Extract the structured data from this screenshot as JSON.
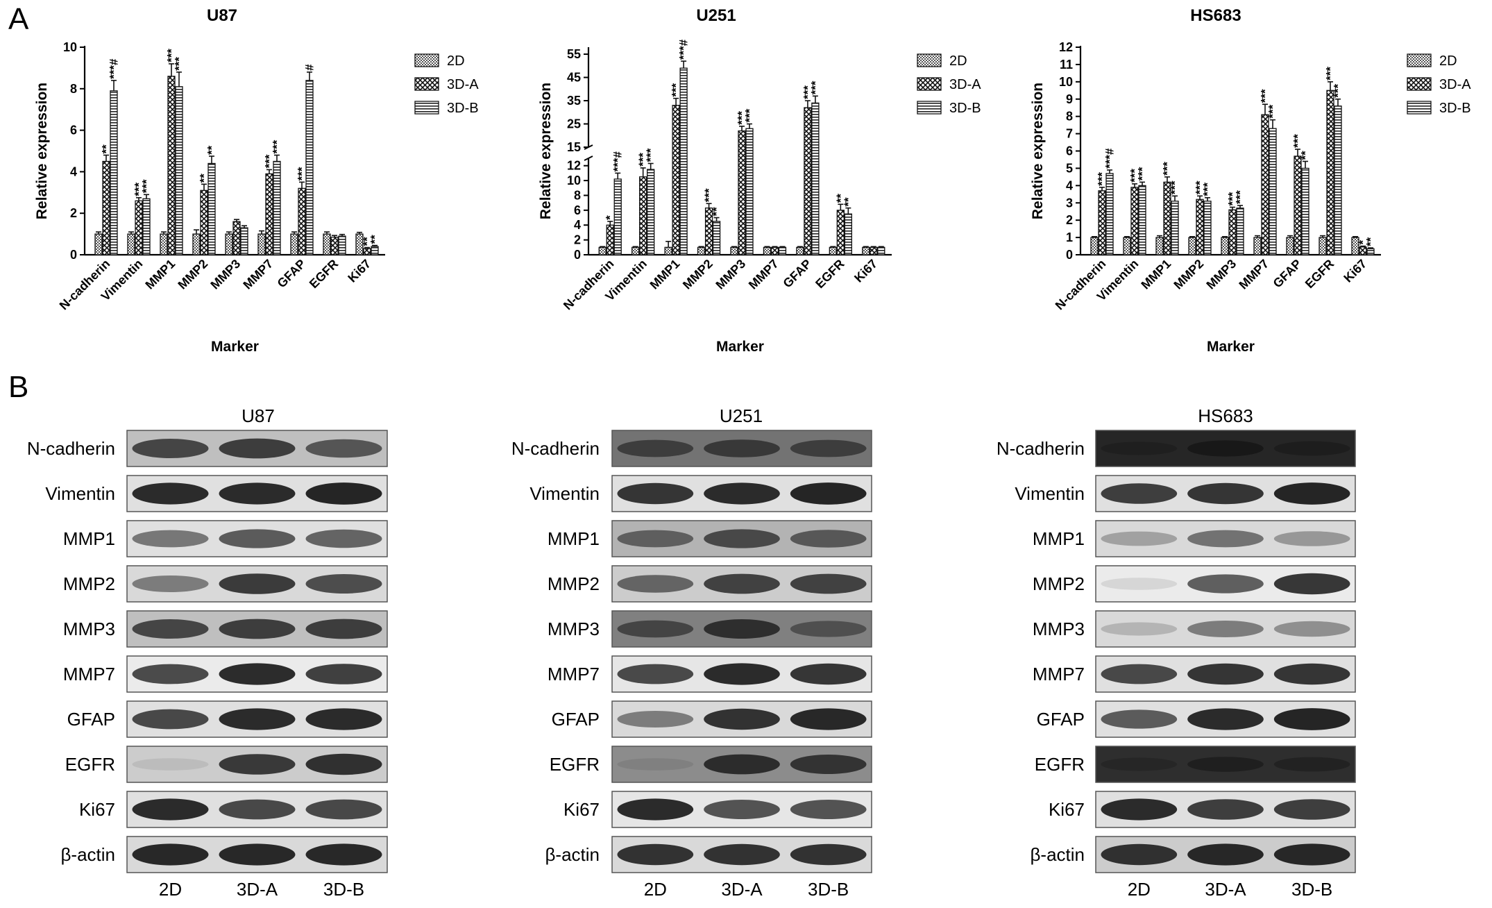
{
  "panel_labels": {
    "a": "A",
    "b": "B"
  },
  "legend_labels": [
    "2D",
    "3D-A",
    "3D-B"
  ],
  "panel_b": {
    "blots": [
      {
        "title": "U87",
        "columns": [
          "2D",
          "3D-A",
          "3D-B"
        ],
        "rows": [
          "N-cadherin",
          "Vimentin",
          "MMP1",
          "MMP2",
          "MMP3",
          "MMP7",
          "GFAP",
          "EGFR",
          "Ki67",
          "β-actin"
        ]
      },
      {
        "title": "U251",
        "columns": [
          "2D",
          "3D-A",
          "3D-B"
        ],
        "rows": [
          "N-cadherin",
          "Vimentin",
          "MMP1",
          "MMP2",
          "MMP3",
          "MMP7",
          "GFAP",
          "EGFR",
          "Ki67",
          "β-actin"
        ]
      },
      {
        "title": "HS683",
        "columns": [
          "2D",
          "3D-A",
          "3D-B"
        ],
        "rows": [
          "N-cadherin",
          "Vimentin",
          "MMP1",
          "MMP2",
          "MMP3",
          "MMP7",
          "GFAP",
          "EGFR",
          "Ki67",
          "β-actin"
        ]
      }
    ]
  },
  "chart_data": [
    {
      "type": "bar",
      "title": "U87",
      "xlabel": "Marker",
      "ylabel": "Relative expression",
      "ylim": [
        0,
        10
      ],
      "yticks": [
        "0",
        "2",
        "4",
        "6",
        "8",
        "10"
      ],
      "legend": "right",
      "categories": [
        "N-cadherin",
        "Vimentin",
        "MMP1",
        "MMP2",
        "MMP3",
        "MMP7",
        "GFAP",
        "EGFR",
        "Ki67"
      ],
      "series": [
        {
          "name": "2D",
          "values": [
            1.0,
            1.0,
            1.0,
            1.0,
            1.0,
            1.0,
            1.0,
            1.0,
            1.0
          ],
          "errors": [
            0.1,
            0.1,
            0.1,
            0.2,
            0.1,
            0.15,
            0.1,
            0.1,
            0.08
          ],
          "annotations": [
            "",
            "",
            "",
            "",
            "",
            "",
            "",
            "",
            ""
          ]
        },
        {
          "name": "3D-A",
          "values": [
            4.5,
            2.6,
            8.6,
            3.1,
            1.6,
            3.9,
            3.2,
            0.85,
            0.3
          ],
          "errors": [
            0.3,
            0.15,
            0.6,
            0.3,
            0.1,
            0.2,
            0.3,
            0.08,
            0.05
          ],
          "annotations": [
            "**",
            "***",
            "***",
            "**",
            "",
            "***",
            "***",
            "",
            "**"
          ]
        },
        {
          "name": "3D-B",
          "values": [
            7.9,
            2.7,
            8.1,
            4.4,
            1.3,
            4.5,
            8.4,
            0.9,
            0.4
          ],
          "errors": [
            0.5,
            0.2,
            0.7,
            0.35,
            0.1,
            0.3,
            0.4,
            0.08,
            0.05
          ],
          "annotations": [
            "***#",
            "***",
            "***",
            "**",
            "",
            "***",
            "#",
            "",
            "**"
          ]
        }
      ]
    },
    {
      "type": "bar",
      "title": "U251",
      "xlabel": "Marker",
      "ylabel": "Relative expression",
      "axis_break": {
        "lower": [
          0,
          13
        ],
        "upper": [
          15,
          58
        ]
      },
      "yticks_lower": [
        "0",
        "2",
        "4",
        "6",
        "8",
        "10",
        "12"
      ],
      "yticks_upper": [
        "15",
        "25",
        "35",
        "45",
        "55"
      ],
      "legend": "right",
      "categories": [
        "N-cadherin",
        "Vimentin",
        "MMP1",
        "MMP2",
        "MMP3",
        "MMP7",
        "GFAP",
        "EGFR",
        "Ki67"
      ],
      "series": [
        {
          "name": "2D",
          "values": [
            1.0,
            1.0,
            1.0,
            1.0,
            1.0,
            1.0,
            1.0,
            1.0,
            1.0
          ],
          "errors": [
            0.1,
            0.1,
            0.8,
            0.1,
            0.1,
            0.1,
            0.1,
            0.1,
            0.1
          ],
          "annotations": [
            "",
            "",
            "",
            "",
            "",
            "",
            "",
            "",
            ""
          ]
        },
        {
          "name": "3D-A",
          "values": [
            4.0,
            10.5,
            33.0,
            6.3,
            22.0,
            1.0,
            32.0,
            6.0,
            1.0
          ],
          "errors": [
            0.5,
            1.2,
            3.0,
            0.6,
            2.0,
            0.1,
            3.0,
            0.8,
            0.1
          ],
          "annotations": [
            "*",
            "***",
            "***",
            "***",
            "***",
            "",
            "***",
            "**",
            ""
          ]
        },
        {
          "name": "3D-B",
          "values": [
            10.2,
            11.5,
            49.0,
            4.5,
            23.0,
            1.0,
            34.0,
            5.5,
            1.0
          ],
          "errors": [
            0.8,
            0.8,
            3.0,
            0.5,
            2.0,
            0.1,
            3.0,
            0.8,
            0.1
          ],
          "annotations": [
            "***#",
            "***",
            "***#",
            "**",
            "***",
            "",
            "***",
            "**",
            ""
          ]
        }
      ]
    },
    {
      "type": "bar",
      "title": "HS683",
      "xlabel": "Marker",
      "ylabel": "Relative expression",
      "ylim": [
        0,
        12
      ],
      "yticks": [
        "0",
        "1",
        "2",
        "3",
        "4",
        "5",
        "6",
        "7",
        "8",
        "9",
        "10",
        "11",
        "12"
      ],
      "legend": "right",
      "categories": [
        "N-cadherin",
        "Vimentin",
        "MMP1",
        "MMP2",
        "MMP3",
        "MMP7",
        "GFAP",
        "EGFR",
        "Ki67"
      ],
      "series": [
        {
          "name": "2D",
          "values": [
            1.0,
            1.0,
            1.0,
            1.0,
            1.0,
            1.0,
            1.0,
            1.0,
            1.0
          ],
          "errors": [
            0.05,
            0.05,
            0.1,
            0.05,
            0.05,
            0.1,
            0.1,
            0.1,
            0.05
          ],
          "annotations": [
            "",
            "",
            "",
            "",
            "",
            "",
            "",
            "",
            ""
          ]
        },
        {
          "name": "3D-A",
          "values": [
            3.7,
            3.9,
            4.2,
            3.2,
            2.6,
            8.1,
            5.7,
            9.5,
            0.45
          ],
          "errors": [
            0.2,
            0.2,
            0.3,
            0.2,
            0.15,
            0.6,
            0.4,
            0.5,
            0.05
          ],
          "annotations": [
            "***",
            "***",
            "***",
            "***",
            "***",
            "***",
            "***",
            "***",
            "*"
          ]
        },
        {
          "name": "3D-B",
          "values": [
            4.7,
            4.0,
            3.1,
            3.1,
            2.7,
            7.3,
            5.0,
            8.6,
            0.35
          ],
          "errors": [
            0.2,
            0.2,
            0.3,
            0.2,
            0.15,
            0.5,
            0.4,
            0.4,
            0.05
          ],
          "annotations": [
            "***#",
            "***",
            "***",
            "***",
            "***",
            "***",
            "**",
            "***",
            "**"
          ]
        }
      ]
    }
  ]
}
